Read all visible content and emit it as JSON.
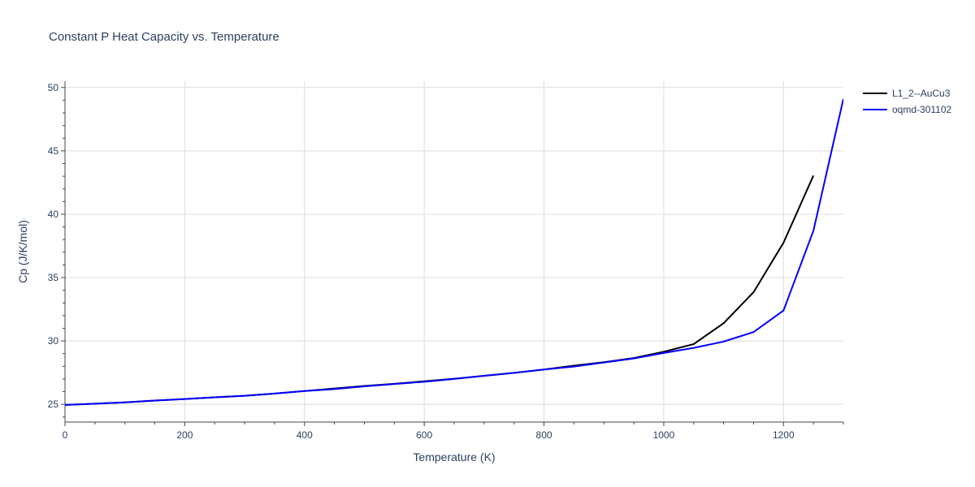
{
  "chart_data": {
    "type": "line",
    "title": "Constant P Heat Capacity vs. Temperature",
    "xlabel": "Temperature (K)",
    "ylabel": "Cp (J/K/mol)",
    "xlim": [
      0,
      1300
    ],
    "ylim": [
      23.6,
      50.5
    ],
    "xticks": [
      0,
      200,
      400,
      600,
      800,
      1000,
      1200
    ],
    "yticks": [
      25,
      30,
      35,
      40,
      45,
      50
    ],
    "grid": true,
    "legend_position": "top-right outside",
    "series": [
      {
        "name": "L1_2--AuCu3",
        "color": "#000000",
        "points": [
          [
            0,
            24.95
          ],
          [
            50,
            25.05
          ],
          [
            100,
            25.15
          ],
          [
            150,
            25.3
          ],
          [
            200,
            25.42
          ],
          [
            250,
            25.55
          ],
          [
            300,
            25.67
          ],
          [
            350,
            25.85
          ],
          [
            400,
            26.05
          ],
          [
            450,
            26.25
          ],
          [
            500,
            26.45
          ],
          [
            550,
            26.62
          ],
          [
            600,
            26.82
          ],
          [
            650,
            27.02
          ],
          [
            700,
            27.25
          ],
          [
            750,
            27.48
          ],
          [
            800,
            27.75
          ],
          [
            850,
            28.05
          ],
          [
            900,
            28.32
          ],
          [
            950,
            28.65
          ],
          [
            1000,
            29.15
          ],
          [
            1050,
            29.75
          ],
          [
            1100,
            31.4
          ],
          [
            1150,
            33.85
          ],
          [
            1200,
            37.75
          ],
          [
            1250,
            43.05
          ]
        ]
      },
      {
        "name": "oqmd-301102",
        "color": "#0000ff",
        "points": [
          [
            0,
            24.95
          ],
          [
            50,
            25.05
          ],
          [
            100,
            25.15
          ],
          [
            150,
            25.3
          ],
          [
            200,
            25.42
          ],
          [
            250,
            25.55
          ],
          [
            300,
            25.67
          ],
          [
            350,
            25.85
          ],
          [
            400,
            26.05
          ],
          [
            450,
            26.2
          ],
          [
            500,
            26.42
          ],
          [
            550,
            26.6
          ],
          [
            600,
            26.78
          ],
          [
            650,
            27.0
          ],
          [
            700,
            27.25
          ],
          [
            750,
            27.48
          ],
          [
            800,
            27.75
          ],
          [
            850,
            27.98
          ],
          [
            900,
            28.3
          ],
          [
            950,
            28.62
          ],
          [
            1000,
            29.05
          ],
          [
            1050,
            29.45
          ],
          [
            1100,
            29.95
          ],
          [
            1150,
            30.7
          ],
          [
            1200,
            32.4
          ],
          [
            1250,
            38.7
          ],
          [
            1300,
            49.1
          ]
        ]
      }
    ]
  }
}
